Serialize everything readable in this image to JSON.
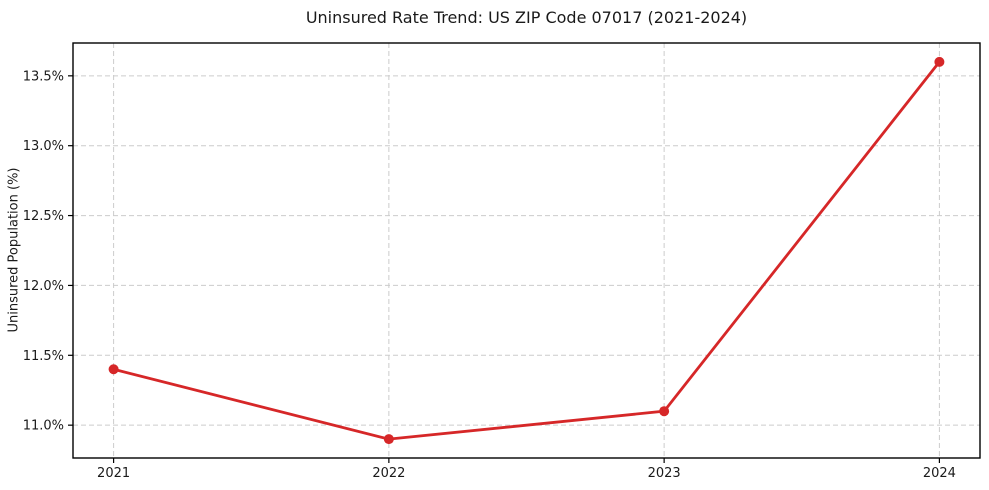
{
  "chart_data": {
    "type": "line",
    "title": "Uninsured Rate Trend: US ZIP Code 07017 (2021-2024)",
    "xlabel": "",
    "ylabel": "Uninsured Population (%)",
    "x": [
      2021,
      2022,
      2023,
      2024
    ],
    "x_tick_labels": [
      "2021",
      "2022",
      "2023",
      "2024"
    ],
    "y_ticks": [
      11.0,
      11.5,
      12.0,
      12.5,
      13.0,
      13.5
    ],
    "y_tick_labels": [
      "11.0%",
      "11.5%",
      "12.0%",
      "12.5%",
      "13.0%",
      "13.5%"
    ],
    "series": [
      {
        "values": [
          11.4,
          10.9,
          11.1,
          13.6
        ],
        "color": "#d62728",
        "marker": "circle"
      }
    ],
    "xlim": [
      2020.8525,
      2024.1475
    ],
    "ylim": [
      10.765,
      13.735
    ],
    "grid": true,
    "grid_style": "dashed",
    "grid_color": "#cccccc",
    "spine_color": "#000000",
    "background": "#ffffff",
    "legend_position": "none"
  }
}
